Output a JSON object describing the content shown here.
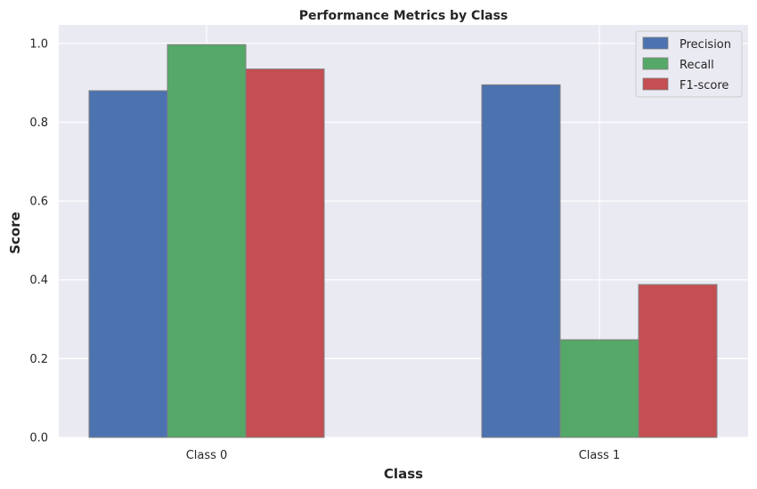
{
  "chart_data": {
    "type": "bar",
    "title": "Performance Metrics by Class",
    "xlabel": "Class",
    "ylabel": "Score",
    "categories": [
      "Class 0",
      "Class 1"
    ],
    "series": [
      {
        "name": "Precision",
        "values": [
          0.88,
          0.895
        ],
        "color": "#4c72b0"
      },
      {
        "name": "Recall",
        "values": [
          0.997,
          0.248
        ],
        "color": "#55a868"
      },
      {
        "name": "F1-score",
        "values": [
          0.935,
          0.388
        ],
        "color": "#c44e52"
      }
    ],
    "ylim": [
      0,
      1.047
    ],
    "yticks": [
      "0.0",
      "0.2",
      "0.4",
      "0.6",
      "0.8",
      "1.0"
    ],
    "grid": true,
    "legend_position": "top-right",
    "background": "#eaeaf2"
  }
}
